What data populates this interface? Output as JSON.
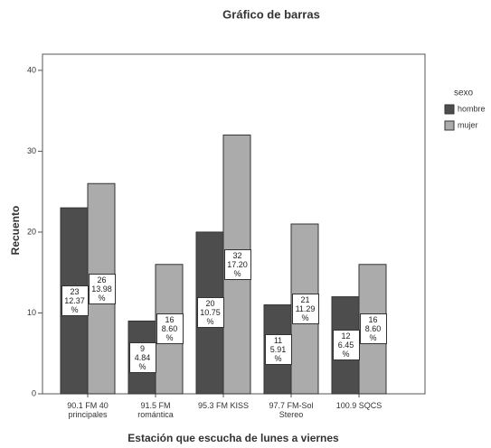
{
  "chart_data": {
    "type": "bar",
    "title": "Gráfico de barras",
    "x_label": "Estación que escucha de lunes a viernes",
    "y_label": "Recuento",
    "categories": [
      "90.1 FM 40 principales",
      "91.5 FM romántica",
      "95.3 FM KISS",
      "97.7 FM-Sol Stereo",
      "100.9 SQCS"
    ],
    "series": [
      {
        "name": "hombre",
        "color": "#4d4d4d",
        "values": [
          23,
          9,
          20,
          11,
          12
        ],
        "value_labels": [
          "23\n12.37\n%",
          "9\n4.84\n%",
          "20\n10.75\n%",
          "11\n5.91\n%",
          "12\n6.45\n%"
        ]
      },
      {
        "name": "mujer",
        "color": "#ababab",
        "values": [
          26,
          16,
          32,
          21,
          16
        ],
        "value_labels": [
          "26\n13.98\n%",
          "16\n8.60\n%",
          "32\n17.20\n%",
          "21\n11.29\n%",
          "16\n8.60\n%"
        ]
      }
    ],
    "legend_title": "sexo",
    "ylim": [
      0,
      42
    ],
    "yticks": [
      0,
      10,
      20,
      30,
      40
    ]
  }
}
